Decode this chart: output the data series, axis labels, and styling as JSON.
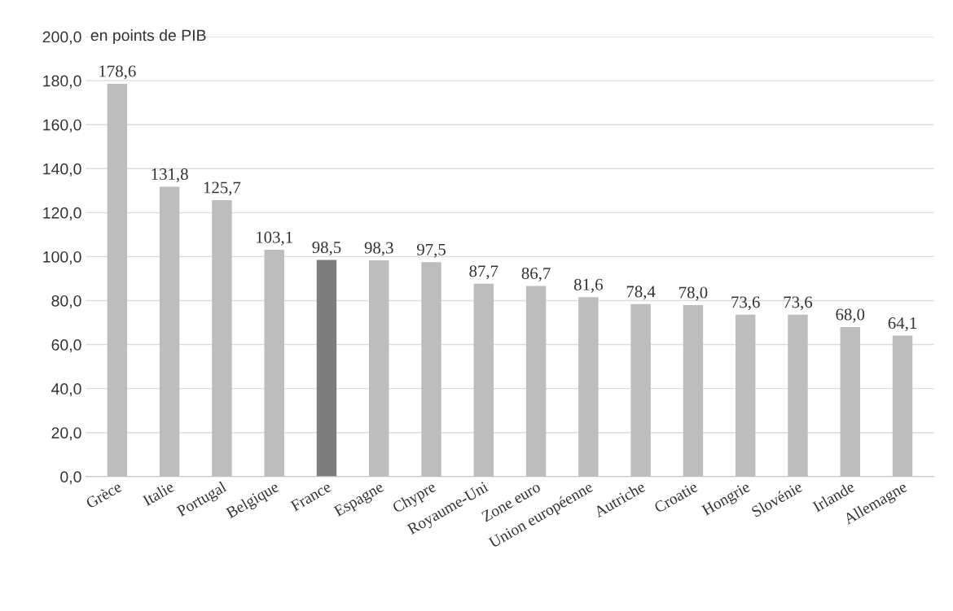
{
  "chart_data": {
    "type": "bar",
    "ylabel": "en points de PIB",
    "categories": [
      "Grèce",
      "Italie",
      "Portugal",
      "Belgique",
      "France",
      "Espagne",
      "Chypre",
      "Royaume-Uni",
      "Zone euro",
      "Union européenne",
      "Autriche",
      "Croatie",
      "Hongrie",
      "Slovénie",
      "Irlande",
      "Allemagne"
    ],
    "values": [
      178.6,
      131.8,
      125.7,
      103.1,
      98.5,
      98.3,
      97.5,
      87.7,
      86.7,
      81.6,
      78.4,
      78.0,
      73.6,
      73.6,
      68.0,
      64.1
    ],
    "colors": [
      "#bdbdbd",
      "#bdbdbd",
      "#bdbdbd",
      "#bdbdbd",
      "#7d7d7d",
      "#bdbdbd",
      "#bdbdbd",
      "#bdbdbd",
      "#bdbdbd",
      "#bdbdbd",
      "#bdbdbd",
      "#bdbdbd",
      "#bdbdbd",
      "#bdbdbd",
      "#bdbdbd",
      "#bdbdbd"
    ],
    "value_labels": [
      "178,6",
      "131,8",
      "125,7",
      "103,1",
      "98,5",
      "98,3",
      "97,5",
      "87,7",
      "86,7",
      "81,6",
      "78,4",
      "78,0",
      "73,6",
      "73,6",
      "68,0",
      "64,1"
    ],
    "ylim": [
      0,
      200
    ],
    "yticks": [
      {
        "value": 0,
        "label": "0,0"
      },
      {
        "value": 20,
        "label": "20,0"
      },
      {
        "value": 40,
        "label": "40,0"
      },
      {
        "value": 60,
        "label": "60,0"
      },
      {
        "value": 80,
        "label": "80,0"
      },
      {
        "value": 100,
        "label": "100,0"
      },
      {
        "value": 120,
        "label": "120,0"
      },
      {
        "value": 140,
        "label": "140,0"
      },
      {
        "value": 160,
        "label": "160,0"
      },
      {
        "value": 180,
        "label": "180,0"
      },
      {
        "value": 200,
        "label": "200,0"
      }
    ],
    "grid": "y"
  }
}
